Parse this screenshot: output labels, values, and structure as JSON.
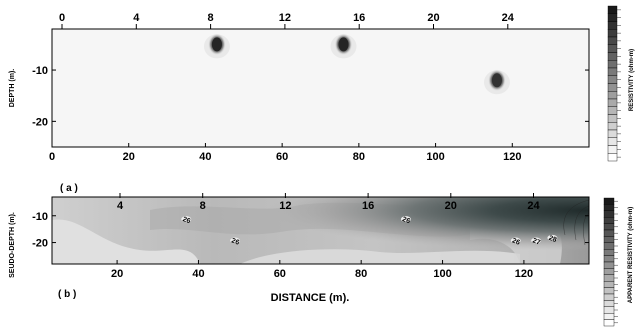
{
  "figure": {
    "x_axis_label": "DISTANCE (m).",
    "top_scale_ticks_a": [
      "0",
      "4",
      "8",
      "12",
      "16",
      "20",
      "24"
    ],
    "top_scale_ticks_b": [
      "4",
      "8",
      "12",
      "16",
      "20",
      "24"
    ]
  },
  "chart_data": [
    {
      "type": "heatmap",
      "panel_label": "( a )",
      "ylabel": "DEPTH (m).",
      "colorbar_label": "RESISTIVITY (ohm-m)",
      "colorbar_levels": 20,
      "xlim": [
        0,
        140
      ],
      "ylim": [
        -25,
        -2
      ],
      "x_ticks": [
        0,
        20,
        40,
        60,
        80,
        100,
        120
      ],
      "y_ticks": [
        -10,
        -20
      ],
      "x_tick_labels": [
        "0",
        "20",
        "40",
        "60",
        "80",
        "100",
        "120"
      ],
      "y_tick_labels": [
        "-10",
        "-20"
      ],
      "background_level": 1,
      "anomalies": [
        {
          "x": 43,
          "y": -5,
          "level": 18
        },
        {
          "x": 76,
          "y": -5,
          "level": 18
        },
        {
          "x": 116,
          "y": -12,
          "level": 17
        }
      ],
      "grid": false
    },
    {
      "type": "heatmap",
      "panel_label": "( b )",
      "ylabel": "SEUDO-DEPTH (m).",
      "colorbar_label": "APPARENT RESISTIVITY (ohm-m)",
      "colorbar_levels": 20,
      "xlim": [
        4,
        136
      ],
      "ylim": [
        -28,
        -3
      ],
      "x_ticks": [
        20,
        40,
        60,
        80,
        100,
        120
      ],
      "y_ticks": [
        -10,
        -20
      ],
      "x_tick_labels": [
        "20",
        "40",
        "60",
        "80",
        "100",
        "120"
      ],
      "y_tick_labels": [
        "-10",
        "-20"
      ],
      "contour_annotations": [
        {
          "x": 37,
          "y": -12,
          "text": "26"
        },
        {
          "x": 49,
          "y": -20,
          "text": "26"
        },
        {
          "x": 91,
          "y": -12,
          "text": "26"
        },
        {
          "x": 118,
          "y": -20,
          "text": "26"
        },
        {
          "x": 123,
          "y": -20,
          "text": "27"
        },
        {
          "x": 127,
          "y": -19,
          "text": "28"
        }
      ],
      "grid": false
    }
  ]
}
